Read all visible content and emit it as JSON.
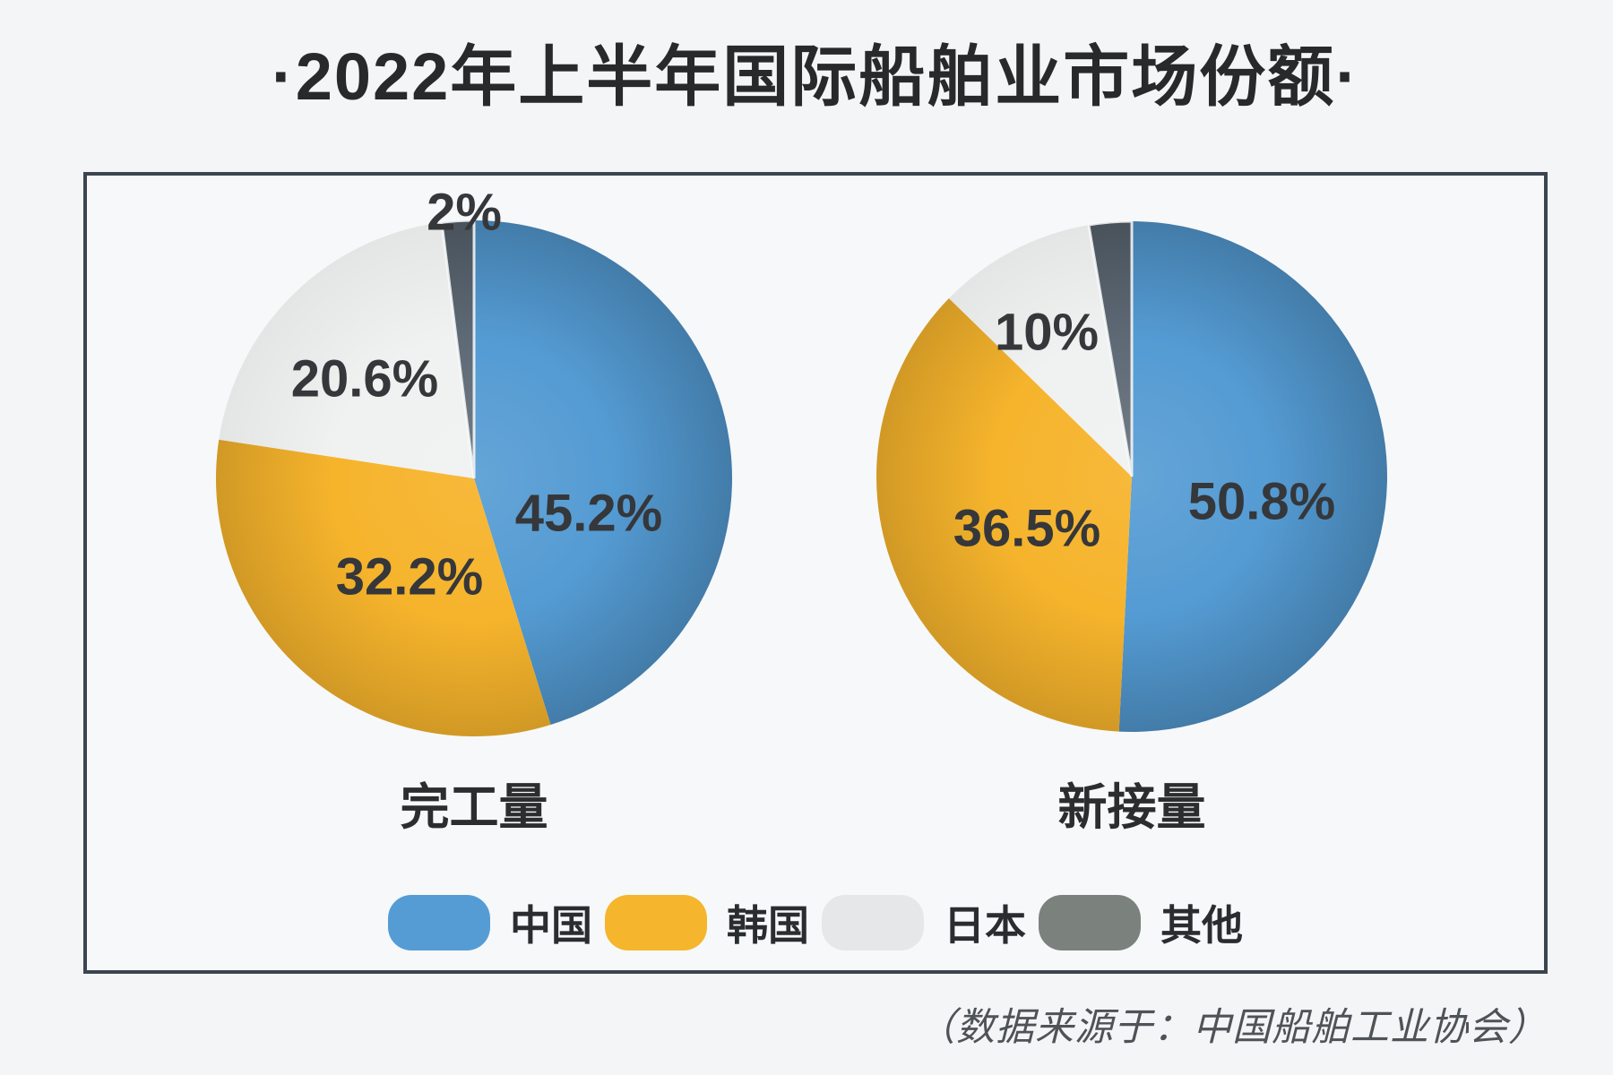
{
  "title": "·2022年上半年国际船舶业市场份额·",
  "source_note": "（数据来源于：中国船舶工业协会）",
  "legend": [
    {
      "label": "中国",
      "color": "#559cd5"
    },
    {
      "label": "韩国",
      "color": "#f5b62d"
    },
    {
      "label": "日本",
      "color": "#e6e7e8"
    },
    {
      "label": "其他",
      "color": "#7b817c"
    }
  ],
  "colors": {
    "china_blue": "#549bd3",
    "korea_yellow": "#f6b42c",
    "japan_light": "#f0f1f1",
    "other_slate": "#5d6975",
    "panel_border": "#3b454f",
    "label_text": "#35373a"
  },
  "chart_data": [
    {
      "type": "pie",
      "title": "完工量",
      "slices": [
        {
          "name": "中国",
          "value": 45.2,
          "label": "45.2%",
          "color": "#549bd3"
        },
        {
          "name": "韩国",
          "value": 32.2,
          "label": "32.2%",
          "color": "#f6b42c"
        },
        {
          "name": "日本",
          "value": 20.6,
          "label": "20.6%",
          "color": "#f0f1f1"
        },
        {
          "name": "其他",
          "value": 2.0,
          "label": "2%",
          "color": "#5d6975"
        }
      ]
    },
    {
      "type": "pie",
      "title": "新接量",
      "slices": [
        {
          "name": "中国",
          "value": 50.8,
          "label": "50.8%",
          "color": "#549bd3"
        },
        {
          "name": "韩国",
          "value": 36.5,
          "label": "36.5%",
          "color": "#f6b42c"
        },
        {
          "name": "日本",
          "value": 10.0,
          "label": "10%",
          "color": "#f0f1f1"
        },
        {
          "name": "其他",
          "value": 2.7,
          "label": null,
          "color": "#5d6975"
        }
      ]
    }
  ]
}
